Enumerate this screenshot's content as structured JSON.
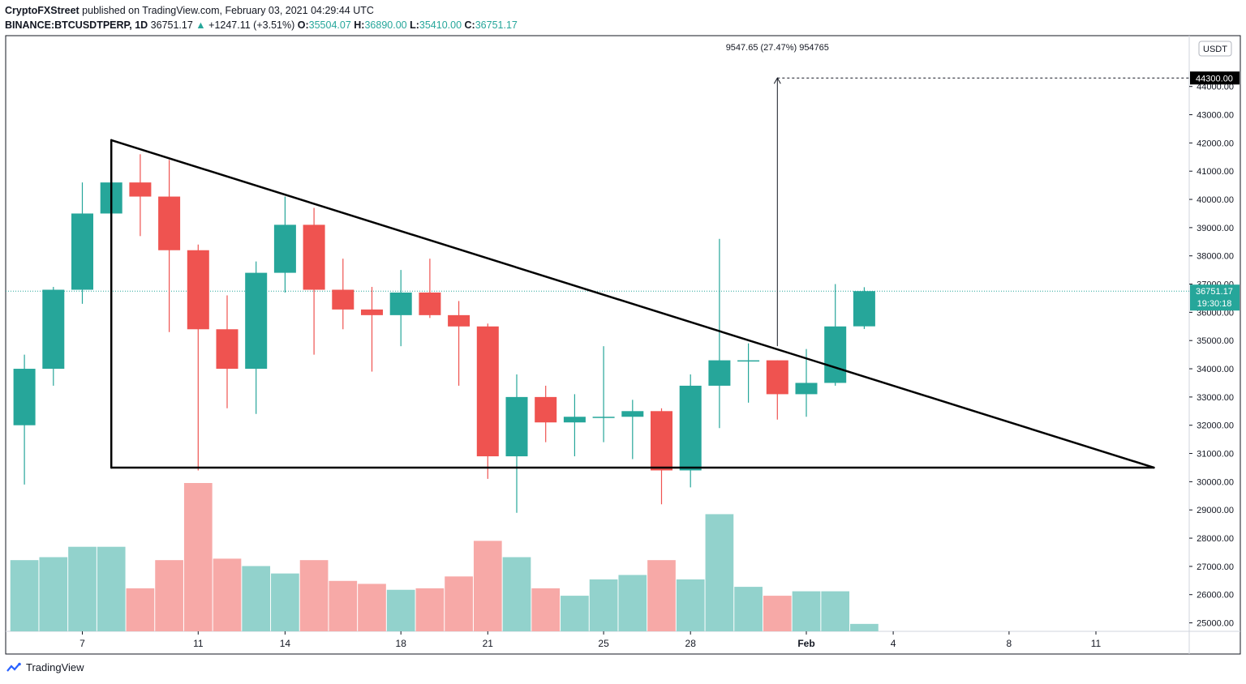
{
  "header": {
    "publisher": "CryptoFXStreet",
    "published_text": "published on TradingView.com, February 03, 2021 04:29:44 UTC",
    "symbol": "BINANCE:BTCUSDTPERP, 1D",
    "last": "36751.17",
    "change": "+1247.11 (+3.51%)",
    "o_label": "O:",
    "o_value": "35504.07",
    "h_label": "H:",
    "h_value": "36890.00",
    "l_label": "L:",
    "l_value": "35410.00",
    "c_label": "C:",
    "c_value": "36751.17"
  },
  "footer": {
    "brand": "TradingView"
  },
  "colors": {
    "up": "#26a69a",
    "down": "#ef5350",
    "vol_up": "#92d2cc",
    "vol_down": "#f7a9a7"
  },
  "chart_data": {
    "type": "candlestick",
    "y_currency": "USDT",
    "ylim": [
      24700,
      45800
    ],
    "y_ticks": [
      25000,
      26000,
      27000,
      28000,
      29000,
      30000,
      31000,
      32000,
      33000,
      34000,
      35000,
      36000,
      37000,
      38000,
      39000,
      40000,
      41000,
      42000,
      43000,
      44000
    ],
    "x_ticks": [
      {
        "label": "7",
        "date": "2021-01-07",
        "bold": false
      },
      {
        "label": "11",
        "date": "2021-01-11",
        "bold": false
      },
      {
        "label": "14",
        "date": "2021-01-14",
        "bold": false
      },
      {
        "label": "18",
        "date": "2021-01-18",
        "bold": false
      },
      {
        "label": "21",
        "date": "2021-01-21",
        "bold": false
      },
      {
        "label": "25",
        "date": "2021-01-25",
        "bold": false
      },
      {
        "label": "28",
        "date": "2021-01-28",
        "bold": false
      },
      {
        "label": "Feb",
        "date": "2021-02-01",
        "bold": true
      },
      {
        "label": "4",
        "date": "2021-02-04",
        "bold": false
      },
      {
        "label": "8",
        "date": "2021-02-08",
        "bold": false
      },
      {
        "label": "11",
        "date": "2021-02-11",
        "bold": false
      }
    ],
    "candles": [
      {
        "date": "2021-01-05",
        "o": 32000,
        "h": 34500,
        "l": 29900,
        "c": 34000,
        "vol": 0.48
      },
      {
        "date": "2021-01-06",
        "o": 34000,
        "h": 36900,
        "l": 33400,
        "c": 36800,
        "vol": 0.5
      },
      {
        "date": "2021-01-07",
        "o": 36800,
        "h": 40600,
        "l": 36300,
        "c": 39500,
        "vol": 0.57
      },
      {
        "date": "2021-01-08",
        "o": 39500,
        "h": 41900,
        "l": 36600,
        "c": 40600,
        "vol": 0.57
      },
      {
        "date": "2021-01-09",
        "o": 40600,
        "h": 41600,
        "l": 38700,
        "c": 40100,
        "vol": 0.29
      },
      {
        "date": "2021-01-10",
        "o": 40100,
        "h": 41400,
        "l": 35300,
        "c": 38200,
        "vol": 0.48
      },
      {
        "date": "2021-01-11",
        "o": 38200,
        "h": 38400,
        "l": 30400,
        "c": 35400,
        "vol": 1.0
      },
      {
        "date": "2021-01-12",
        "o": 35400,
        "h": 36600,
        "l": 32600,
        "c": 34000,
        "vol": 0.49
      },
      {
        "date": "2021-01-13",
        "o": 34000,
        "h": 37800,
        "l": 32400,
        "c": 37400,
        "vol": 0.44
      },
      {
        "date": "2021-01-14",
        "o": 37400,
        "h": 40100,
        "l": 36700,
        "c": 39100,
        "vol": 0.39
      },
      {
        "date": "2021-01-15",
        "o": 39100,
        "h": 39700,
        "l": 34500,
        "c": 36800,
        "vol": 0.48
      },
      {
        "date": "2021-01-16",
        "o": 36800,
        "h": 37900,
        "l": 35400,
        "c": 36100,
        "vol": 0.34
      },
      {
        "date": "2021-01-17",
        "o": 36100,
        "h": 36900,
        "l": 33900,
        "c": 35900,
        "vol": 0.32
      },
      {
        "date": "2021-01-18",
        "o": 35900,
        "h": 37500,
        "l": 34800,
        "c": 36700,
        "vol": 0.28
      },
      {
        "date": "2021-01-19",
        "o": 36700,
        "h": 37900,
        "l": 35800,
        "c": 35900,
        "vol": 0.29
      },
      {
        "date": "2021-01-20",
        "o": 35900,
        "h": 36400,
        "l": 33400,
        "c": 35500,
        "vol": 0.37
      },
      {
        "date": "2021-01-21",
        "o": 35500,
        "h": 35600,
        "l": 30100,
        "c": 30900,
        "vol": 0.61
      },
      {
        "date": "2021-01-22",
        "o": 30900,
        "h": 33800,
        "l": 28900,
        "c": 33000,
        "vol": 0.5
      },
      {
        "date": "2021-01-23",
        "o": 33000,
        "h": 33400,
        "l": 31400,
        "c": 32100,
        "vol": 0.29
      },
      {
        "date": "2021-01-24",
        "o": 32100,
        "h": 33100,
        "l": 30900,
        "c": 32300,
        "vol": 0.24
      },
      {
        "date": "2021-01-25",
        "o": 32300,
        "h": 34800,
        "l": 31400,
        "c": 32300,
        "vol": 0.35
      },
      {
        "date": "2021-01-26",
        "o": 32300,
        "h": 32900,
        "l": 30800,
        "c": 32500,
        "vol": 0.38
      },
      {
        "date": "2021-01-27",
        "o": 32500,
        "h": 32600,
        "l": 29200,
        "c": 30400,
        "vol": 0.48
      },
      {
        "date": "2021-01-28",
        "o": 30400,
        "h": 33800,
        "l": 29800,
        "c": 33400,
        "vol": 0.35
      },
      {
        "date": "2021-01-29",
        "o": 33400,
        "h": 38600,
        "l": 31900,
        "c": 34300,
        "vol": 0.79
      },
      {
        "date": "2021-01-30",
        "o": 34300,
        "h": 34900,
        "l": 32800,
        "c": 34300,
        "vol": 0.3
      },
      {
        "date": "2021-01-31",
        "o": 34300,
        "h": 34300,
        "l": 32200,
        "c": 33100,
        "vol": 0.24
      },
      {
        "date": "2021-02-01",
        "o": 33100,
        "h": 34700,
        "l": 32300,
        "c": 33500,
        "vol": 0.27
      },
      {
        "date": "2021-02-02",
        "o": 33500,
        "h": 37000,
        "l": 33400,
        "c": 35500,
        "vol": 0.27
      },
      {
        "date": "2021-02-03",
        "o": 35504.07,
        "h": 36890.0,
        "l": 35410.0,
        "c": 36751.17,
        "vol": 0.05
      }
    ],
    "pattern": {
      "name": "descending triangle",
      "upper_line": [
        {
          "date": "2021-01-08",
          "price": 42100
        },
        {
          "date": "2021-02-13",
          "price": 30500
        }
      ],
      "base_line": [
        {
          "date": "2021-01-08",
          "price": 30500
        },
        {
          "date": "2021-02-13",
          "price": 30500
        }
      ],
      "vertical_edge": [
        {
          "date": "2021-01-08",
          "price": 30500
        },
        {
          "date": "2021-01-08",
          "price": 42100
        }
      ]
    },
    "measure": {
      "date": "2021-01-31",
      "from_price": 34800,
      "to_price": 44300,
      "label": "9547.65  (27.47%)  954765"
    },
    "price_labels": {
      "target": "44300.00",
      "target_value": 44300,
      "last": "36751.17",
      "last_value": 36751.17,
      "countdown": "19:30:18",
      "currency": "USDT"
    }
  }
}
